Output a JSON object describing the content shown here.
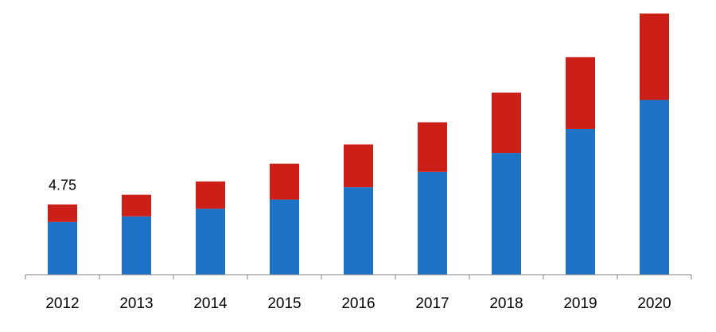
{
  "chart_data": {
    "type": "bar",
    "stacked": true,
    "categories": [
      "2012",
      "2013",
      "2014",
      "2015",
      "2016",
      "2017",
      "2018",
      "2019",
      "2020"
    ],
    "series": [
      {
        "color": "#1f73c6",
        "values": [
          3.56,
          3.94,
          4.46,
          5.08,
          5.91,
          6.95,
          8.23,
          9.85,
          11.81
        ]
      },
      {
        "color": "#cc1f17",
        "values": [
          1.19,
          1.46,
          1.84,
          2.42,
          2.89,
          3.35,
          4.07,
          4.85,
          5.84
        ]
      }
    ],
    "data_labels": [
      {
        "category": "2012",
        "text": "4.75"
      }
    ],
    "grid": false,
    "legend": "none"
  }
}
